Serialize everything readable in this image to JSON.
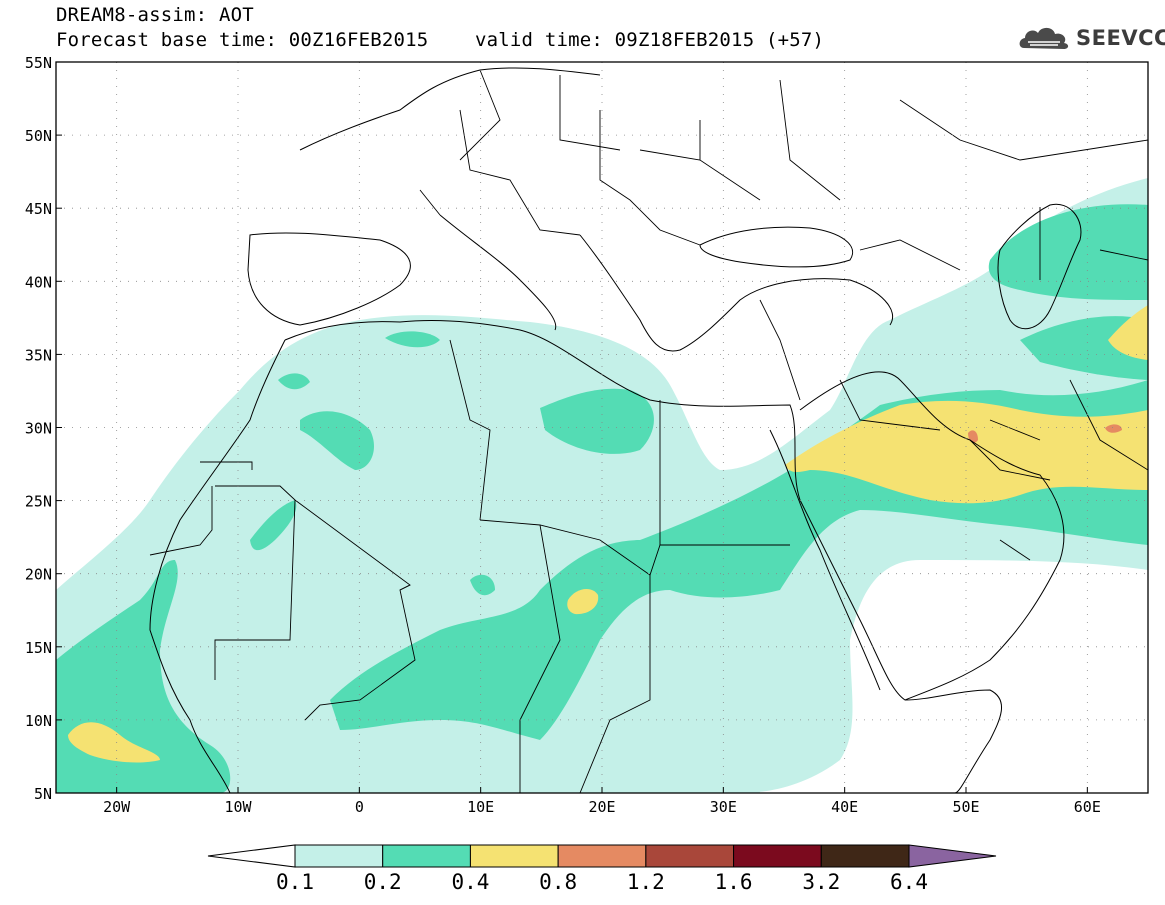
{
  "header": {
    "title_line1": "DREAM8-assim: AOT",
    "title_line2": "Forecast base time: 00Z16FEB2015    valid time: 09Z18FEB2015 (+57)",
    "logo_text": "SEEVCCC"
  },
  "axes": {
    "lat_labels": [
      "55N",
      "50N",
      "45N",
      "40N",
      "35N",
      "30N",
      "25N",
      "20N",
      "15N",
      "10N",
      "5N"
    ],
    "lon_labels": [
      "20W",
      "10W",
      "0",
      "10E",
      "20E",
      "30E",
      "40E",
      "50E",
      "60E"
    ],
    "lat_range": [
      5,
      55
    ],
    "lon_range": [
      -25,
      65
    ]
  },
  "colorbar": {
    "tick_labels": [
      "0.1",
      "0.2",
      "0.4",
      "0.8",
      "1.2",
      "1.6",
      "3.2",
      "6.4"
    ],
    "colors": [
      "#ffffff",
      "#c4f0e8",
      "#54dcb4",
      "#f5e272",
      "#e58a62",
      "#a9473a",
      "#7b0a1e",
      "#3f2717",
      "#8a64a0"
    ]
  },
  "field_colors": {
    "level_0_1": "#c4f0e8",
    "level_0_2": "#54dcb4",
    "level_0_4": "#f5e272",
    "level_0_8": "#e58a62"
  }
}
